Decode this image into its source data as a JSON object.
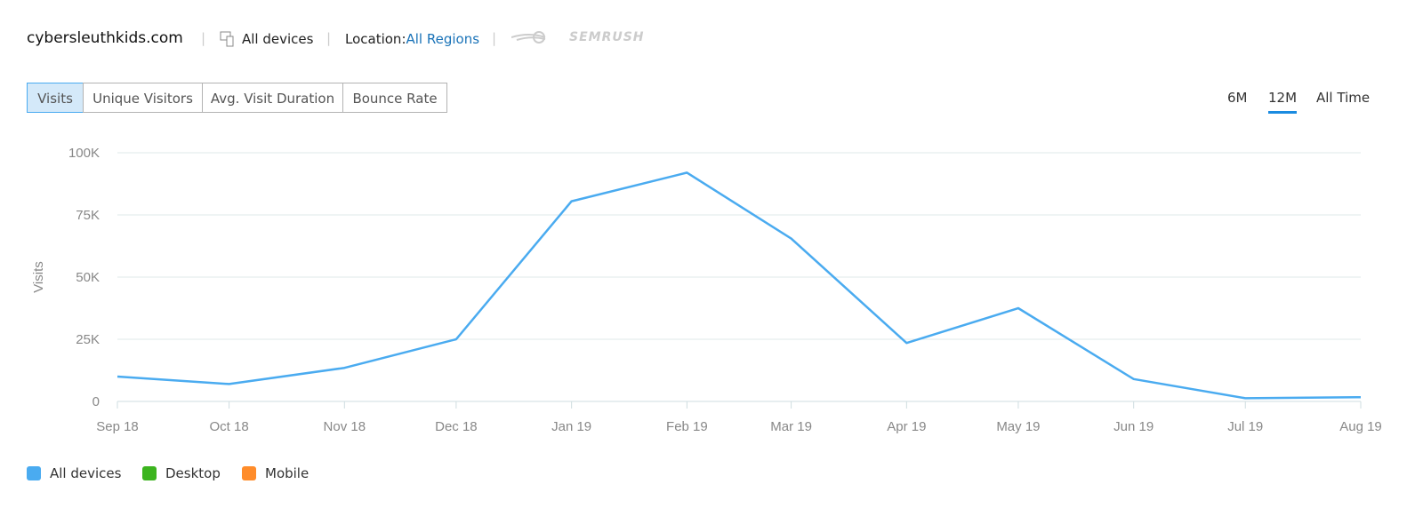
{
  "header": {
    "domain": "cybersleuthkids.com",
    "devices": "All devices",
    "location_label": "Location:",
    "location_value": "All Regions",
    "logo": "SEMRUSH"
  },
  "tabs": [
    "Visits",
    "Unique Visitors",
    "Avg. Visit Duration",
    "Bounce Rate"
  ],
  "selected_tab": 0,
  "periods": [
    "6M",
    "12M",
    "All Time"
  ],
  "selected_period": 1,
  "chart_data": {
    "type": "line",
    "y_label": "Visits",
    "categories": [
      "Sep 18",
      "Oct 18",
      "Nov 18",
      "Dec 18",
      "Jan 19",
      "Feb 19",
      "Mar 19",
      "Apr 19",
      "May 19",
      "Jun 19",
      "Jul 19",
      "Aug 19"
    ],
    "series": [
      {
        "name": "All devices",
        "color": "#4aabf0",
        "values": [
          10000,
          7000,
          13500,
          25000,
          80500,
          92000,
          65500,
          23500,
          37500,
          9000,
          1300,
          1700
        ]
      }
    ],
    "legend": [
      {
        "name": "All devices",
        "color": "#4aabf0"
      },
      {
        "name": "Desktop",
        "color": "#3cb41f"
      },
      {
        "name": "Mobile",
        "color": "#ff8c2a"
      }
    ],
    "ylim": [
      0,
      100000
    ],
    "yticks": [
      0,
      {
        "value": 25000,
        "label": "25K"
      },
      {
        "value": 50000,
        "label": "50K"
      },
      {
        "value": 75000,
        "label": "75K"
      },
      {
        "value": 100000,
        "label": "100K"
      }
    ],
    "grid": true
  }
}
